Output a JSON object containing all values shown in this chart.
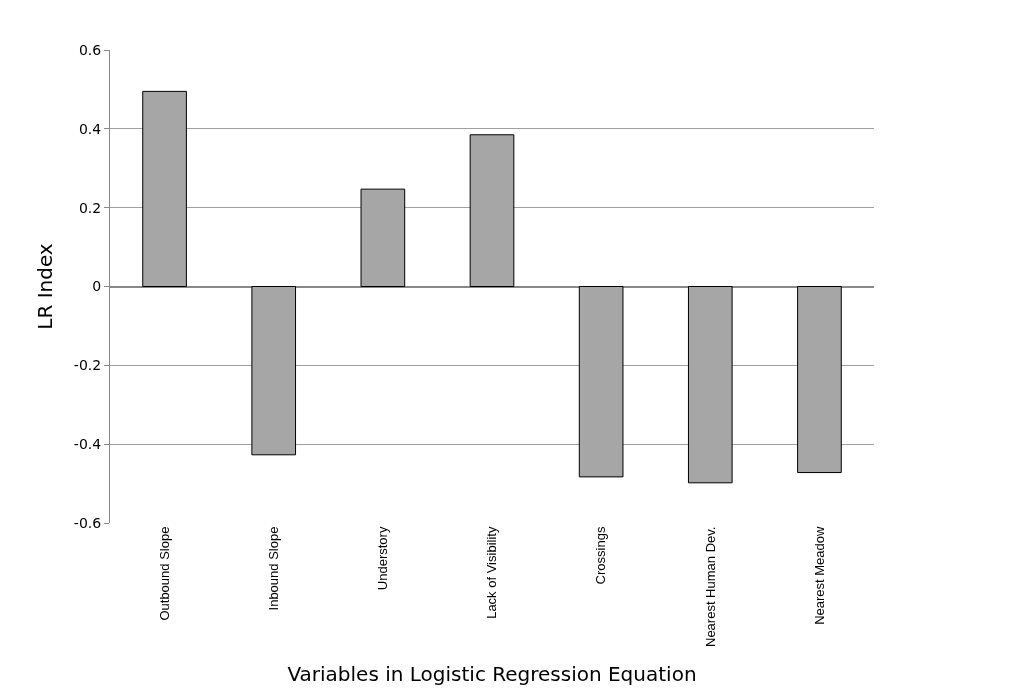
{
  "chart_data": {
    "type": "bar",
    "xlabel": "Variables in Logistic Regression Equation",
    "ylabel": "LR Index",
    "categories": [
      "Outbound Slope",
      "Inbound Slope",
      "Understory",
      "Lack of Visibility",
      "Crossings",
      "Nearest Human Dev.",
      "Nearest Meadow"
    ],
    "values": [
      0.495,
      -0.427,
      0.247,
      0.385,
      -0.483,
      -0.498,
      -0.472
    ],
    "color": "#a6a6a6",
    "ylim": [
      -0.6,
      0.6
    ],
    "yticks": [
      -0.6,
      -0.4,
      -0.2,
      0,
      0.2,
      0.4,
      0.6
    ],
    "grid": "y",
    "legend": false
  }
}
